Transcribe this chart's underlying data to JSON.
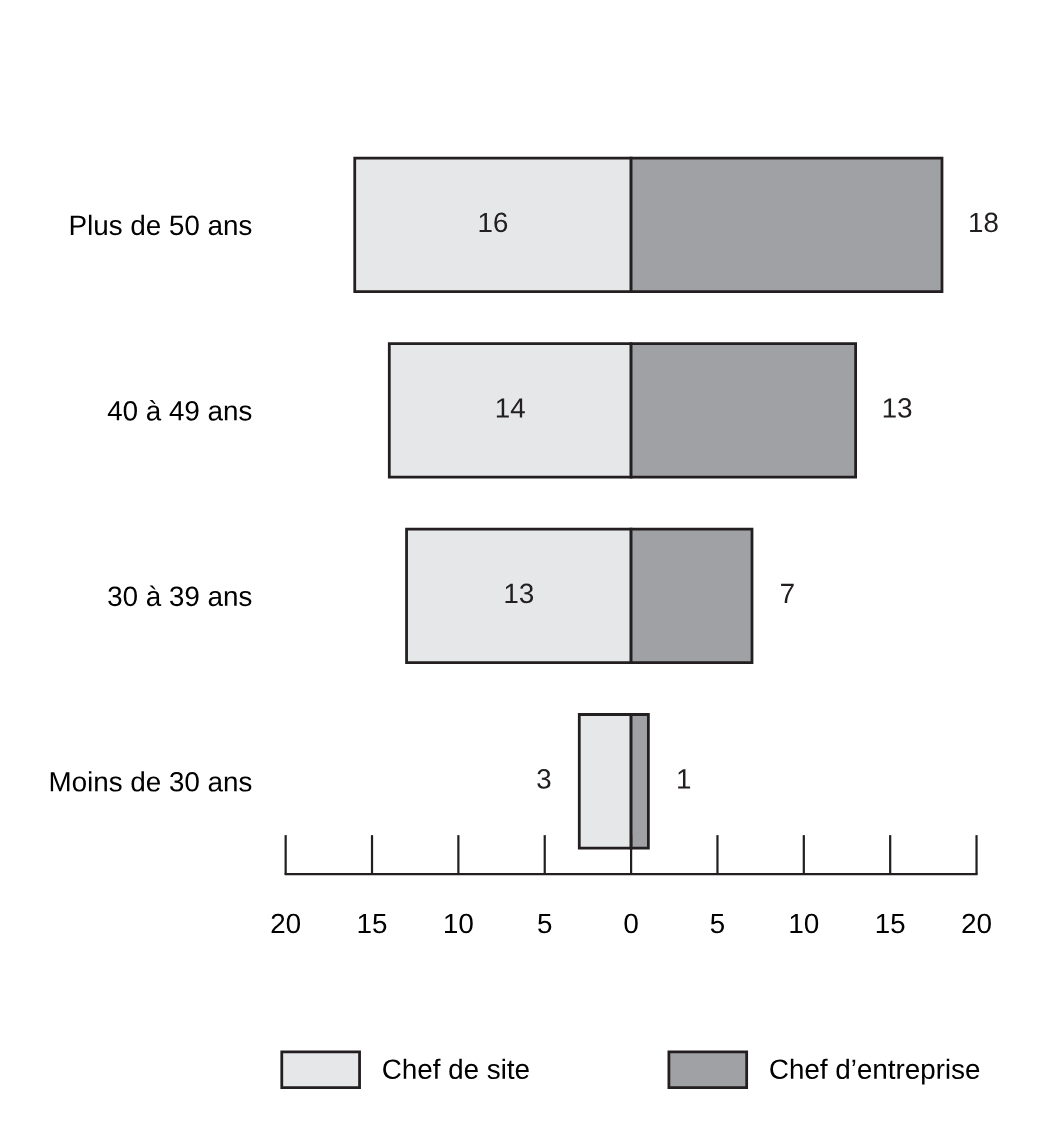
{
  "chart_data": {
    "type": "bar",
    "orientation": "horizontal",
    "categories": [
      "Plus de 50 ans",
      "40 à 49 ans",
      "30 à 39 ans",
      "Moins de 30 ans"
    ],
    "series": [
      {
        "name": "Chef de site",
        "color": "#e6e7e8",
        "values": [
          16,
          14,
          13,
          3
        ],
        "base": [
          -16,
          -14,
          -13,
          -3
        ],
        "value_labels": [
          "16",
          "14",
          "13",
          "3"
        ]
      },
      {
        "name": "Chef d’entreprise",
        "color": "#a0a1a4",
        "values": [
          18,
          13,
          7,
          1
        ],
        "value_labels": [
          "18",
          "13",
          "7",
          "1"
        ]
      }
    ],
    "xlim": [
      -20,
      20
    ],
    "xticks": [
      {
        "value": -20,
        "label": "20"
      },
      {
        "value": -15,
        "label": "15"
      },
      {
        "value": -10,
        "label": "10"
      },
      {
        "value": -5,
        "label": "5"
      },
      0,
      5,
      10,
      15,
      20
    ],
    "grid": false,
    "legend": "bottom"
  }
}
